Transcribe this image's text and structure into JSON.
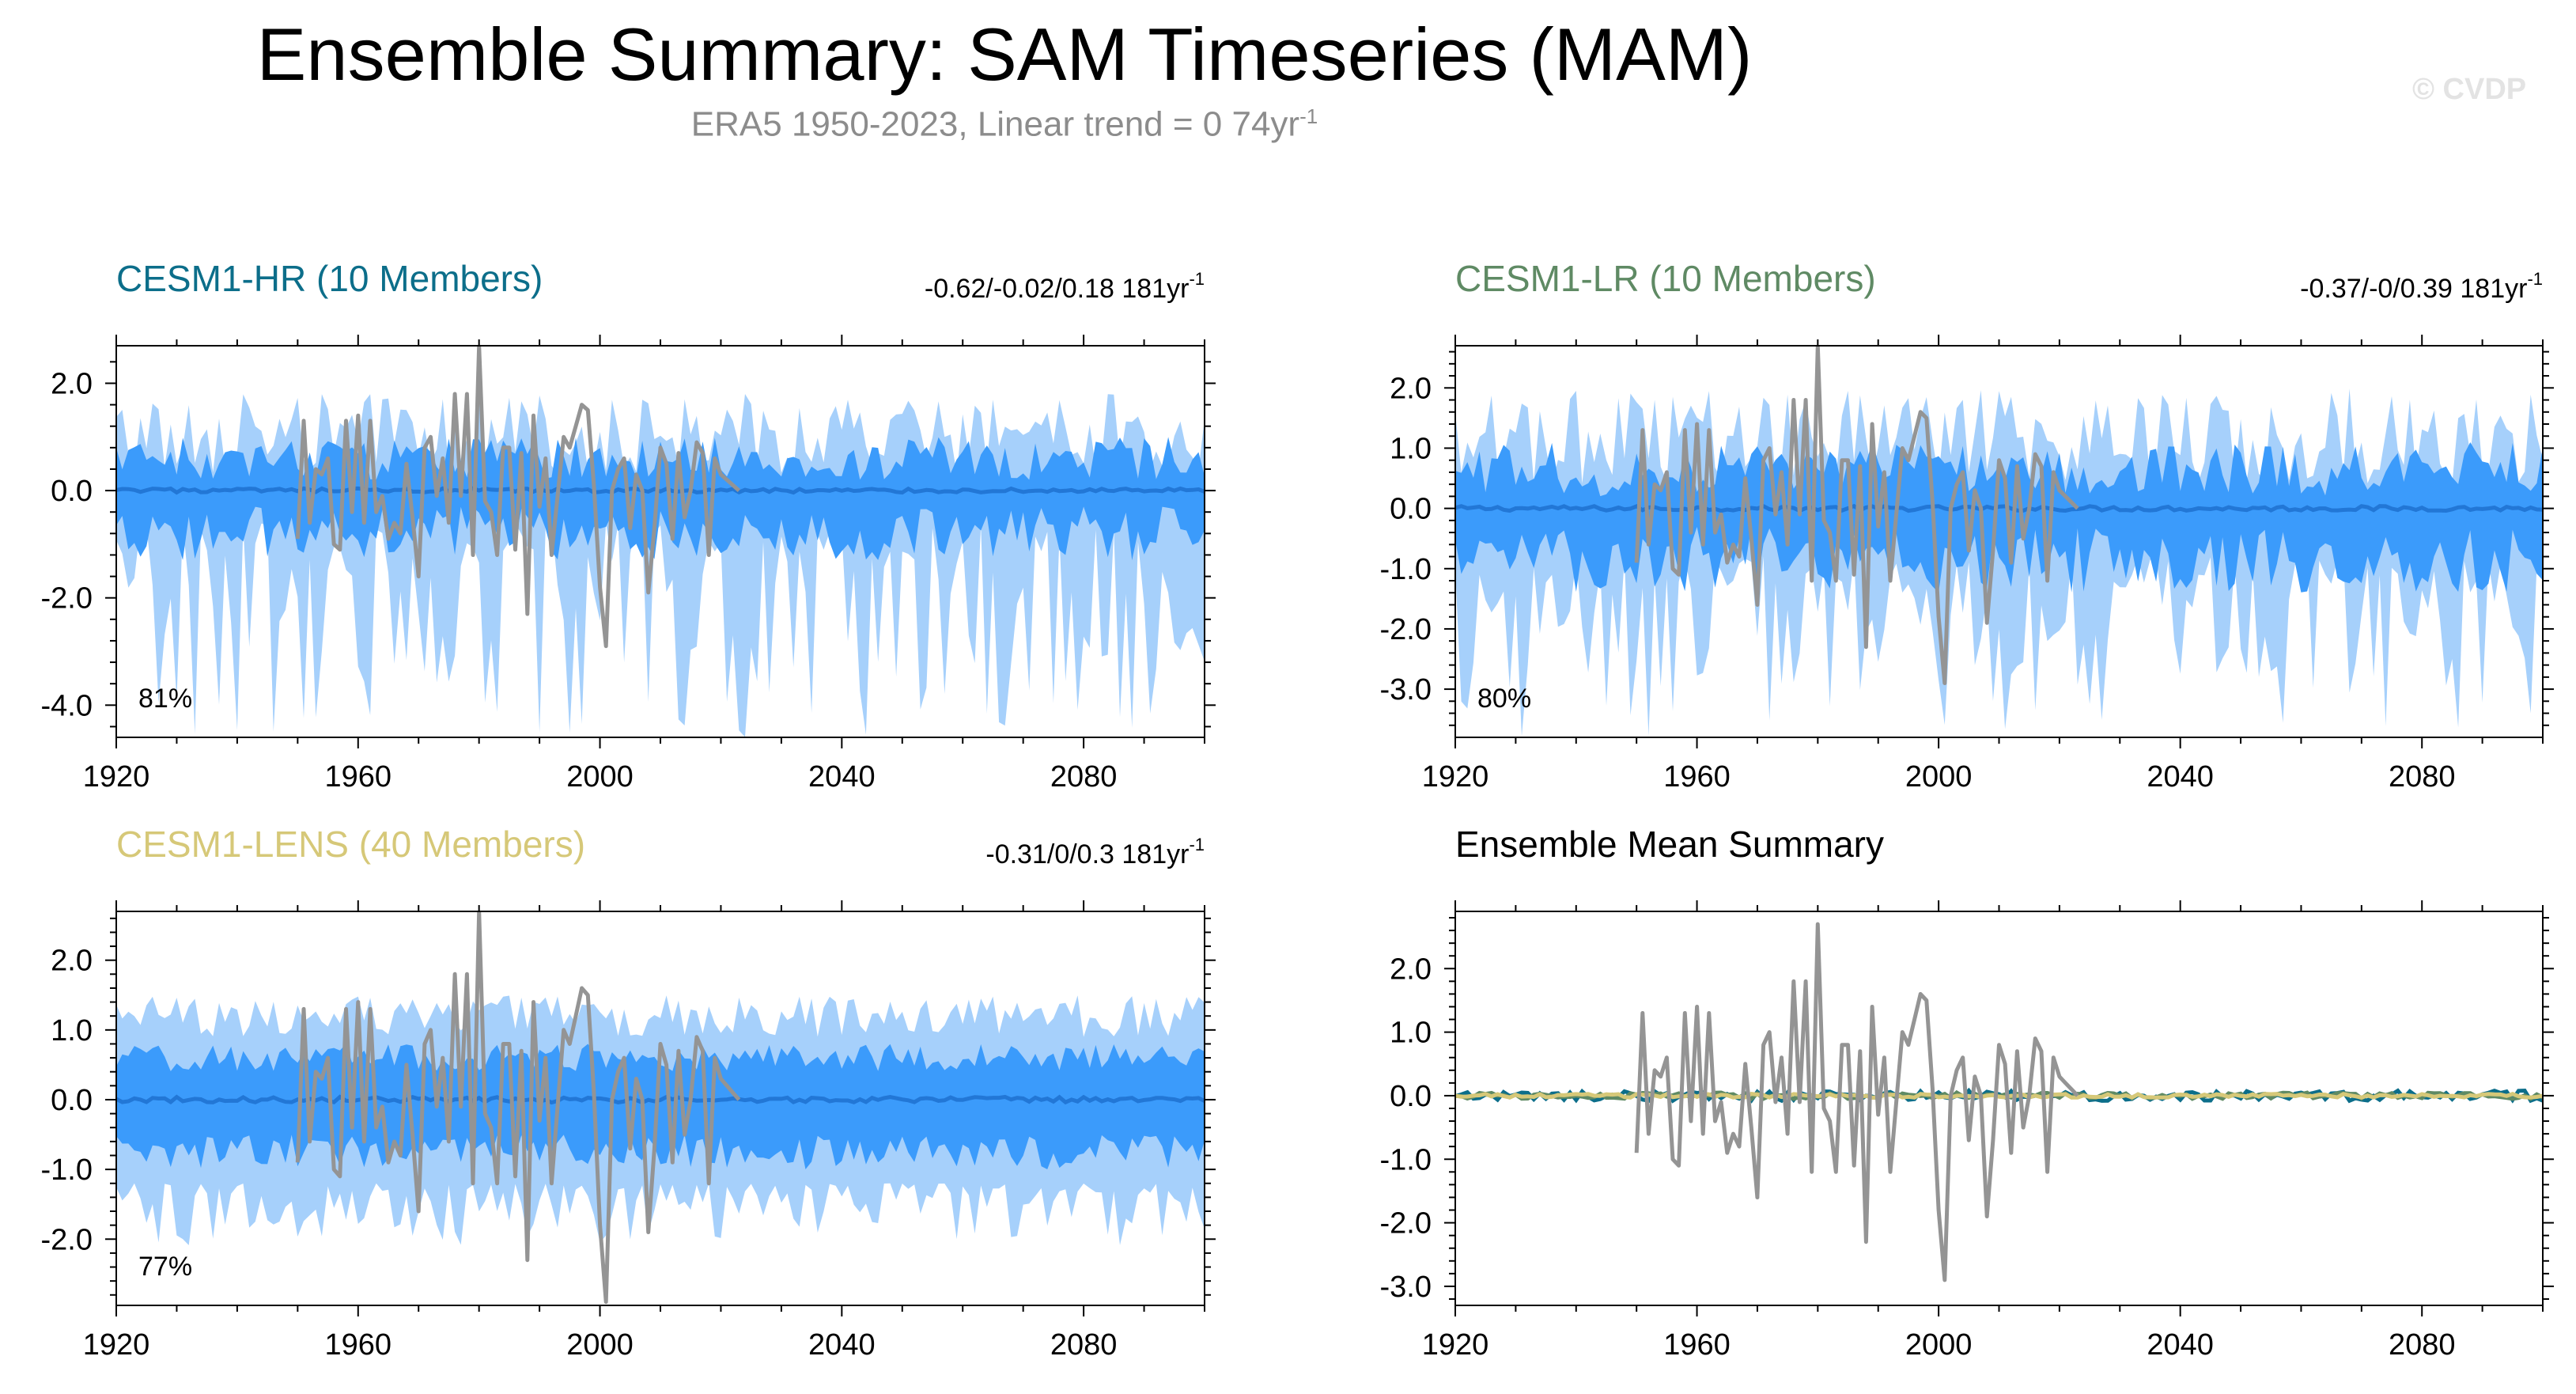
{
  "header": {
    "title": "Ensemble Summary: SAM Timeseries (MAM)",
    "subtitle_main": "ERA5 1950-2023, Linear trend = 0 74yr",
    "subtitle_exp": "-1",
    "copyright": "© CVDP"
  },
  "colors": {
    "outer_band": "#a6d0fb",
    "inner_band": "#3b9bfb",
    "ensemble_mean": "#2277d6",
    "observations": "#949494",
    "hr": "#0c6e8a",
    "lr": "#5f8a64",
    "lens": "#d6c878",
    "summary_title": "#000000"
  },
  "panels": [
    {
      "id": "hr",
      "title": "CESM1-HR (10 Members)",
      "stats_main": "-0.62/-0.02/0.18 181yr",
      "stats_exp": "-1",
      "percent": "81%",
      "x_ticks": [
        "1920",
        "1960",
        "2000",
        "2040",
        "2080"
      ],
      "y_ticks": [
        "2.0",
        "0.0",
        "-2.0",
        "-4.0"
      ]
    },
    {
      "id": "lr",
      "title": "CESM1-LR (10 Members)",
      "stats_main": "-0.37/-0/0.39 181yr",
      "stats_exp": "-1",
      "percent": "80%",
      "x_ticks": [
        "1920",
        "1960",
        "2000",
        "2040",
        "2080"
      ],
      "y_ticks": [
        "2.0",
        "1.0",
        "0.0",
        "-1.0",
        "-2.0",
        "-3.0"
      ]
    },
    {
      "id": "lens",
      "title": "CESM1-LENS (40 Members)",
      "stats_main": "-0.31/0/0.3 181yr",
      "stats_exp": "-1",
      "percent": "77%",
      "x_ticks": [
        "1920",
        "1960",
        "2000",
        "2040",
        "2080"
      ],
      "y_ticks": [
        "2.0",
        "1.0",
        "0.0",
        "-1.0",
        "-2.0"
      ]
    },
    {
      "id": "summary",
      "title": "Ensemble Mean Summary",
      "x_ticks": [
        "1920",
        "1960",
        "2000",
        "2040",
        "2080"
      ],
      "y_ticks": [
        "2.0",
        "1.0",
        "0.0",
        "-1.0",
        "-2.0",
        "-3.0"
      ]
    }
  ],
  "chart_data": [
    {
      "type": "area",
      "panel": "CESM1-HR (10 Members)",
      "xlim": [
        1920,
        2100
      ],
      "ylim": [
        -4.6,
        2.7
      ],
      "band_outer": {
        "min_range": [
          -4.6,
          -0.6
        ],
        "max_range": [
          0.3,
          1.8
        ]
      },
      "band_inner": {
        "min_range": [
          -1.3,
          -0.3
        ],
        "max_range": [
          0.2,
          1.0
        ]
      },
      "ensemble_mean": {
        "x_range": [
          1920,
          2100
        ],
        "y": 0.0
      },
      "observations": {
        "name": "ERA5",
        "x": [
          1950,
          1951,
          1952,
          1953,
          1954,
          1955,
          1956,
          1957,
          1958,
          1959,
          1960,
          1961,
          1962,
          1963,
          1964,
          1965,
          1966,
          1967,
          1968,
          1969,
          1970,
          1971,
          1972,
          1973,
          1974,
          1975,
          1976,
          1977,
          1978,
          1979,
          1980,
          1981,
          1982,
          1983,
          1984,
          1985,
          1986,
          1987,
          1988,
          1989,
          1990,
          1991,
          1992,
          1993,
          1994,
          1995,
          1996,
          1997,
          1998,
          1999,
          2000,
          2001,
          2002,
          2003,
          2004,
          2005,
          2006,
          2007,
          2008,
          2009,
          2010,
          2011,
          2012,
          2013,
          2014,
          2015,
          2016,
          2017,
          2018,
          2019,
          2020,
          2021,
          2022,
          2023
        ],
        "y": [
          -0.9,
          1.3,
          -0.6,
          0.4,
          0.3,
          0.6,
          -1.0,
          -1.1,
          1.3,
          -0.4,
          1.4,
          -0.6,
          1.3,
          -0.4,
          -0.1,
          -0.9,
          -0.6,
          -0.8,
          0.5,
          -0.5,
          -1.6,
          0.8,
          1.0,
          -0.1,
          0.6,
          -0.6,
          1.8,
          -0.1,
          1.8,
          -1.2,
          2.7,
          -0.2,
          -0.4,
          -1.2,
          0.8,
          0.8,
          -1.1,
          0.7,
          -2.3,
          1.4,
          -0.3,
          0.6,
          -1.2,
          -0.1,
          1.0,
          0.8,
          1.2,
          1.6,
          1.5,
          0.1,
          -1.8,
          -2.9,
          0.0,
          0.4,
          0.6,
          -0.7,
          0.3,
          0.0,
          -1.9,
          -0.7,
          0.8,
          0.5,
          -0.9,
          0.7,
          -0.5,
          0.0,
          0.9,
          0.7,
          -1.2,
          0.6,
          0.3,
          0.2,
          0.1,
          0.0
        ]
      }
    },
    {
      "type": "area",
      "panel": "CESM1-LR (10 Members)",
      "xlim": [
        1920,
        2100
      ],
      "ylim": [
        -3.8,
        2.7
      ],
      "band_outer": {
        "min_range": [
          -3.8,
          -0.8
        ],
        "max_range": [
          0.4,
          2.0
        ]
      },
      "band_inner": {
        "min_range": [
          -1.4,
          -0.3
        ],
        "max_range": [
          0.2,
          1.1
        ]
      },
      "ensemble_mean": {
        "x_range": [
          1920,
          2100
        ],
        "y": 0.0
      },
      "observations": {
        "name": "ERA5",
        "x": [
          1950,
          1951,
          1952,
          1953,
          1954,
          1955,
          1956,
          1957,
          1958,
          1959,
          1960,
          1961,
          1962,
          1963,
          1964,
          1965,
          1966,
          1967,
          1968,
          1969,
          1970,
          1971,
          1972,
          1973,
          1974,
          1975,
          1976,
          1977,
          1978,
          1979,
          1980,
          1981,
          1982,
          1983,
          1984,
          1985,
          1986,
          1987,
          1988,
          1989,
          1990,
          1991,
          1992,
          1993,
          1994,
          1995,
          1996,
          1997,
          1998,
          1999,
          2000,
          2001,
          2002,
          2003,
          2004,
          2005,
          2006,
          2007,
          2008,
          2009,
          2010,
          2011,
          2012,
          2013,
          2014,
          2015,
          2016,
          2017,
          2018,
          2019,
          2020,
          2021,
          2022,
          2023
        ],
        "y": [
          -0.9,
          1.3,
          -0.6,
          0.4,
          0.3,
          0.6,
          -1.0,
          -1.1,
          1.3,
          -0.4,
          1.4,
          -0.6,
          1.3,
          -0.4,
          -0.1,
          -0.9,
          -0.6,
          -0.8,
          0.5,
          -0.5,
          -1.6,
          0.8,
          1.0,
          -0.1,
          0.6,
          -0.6,
          1.8,
          -0.1,
          1.8,
          -1.2,
          2.7,
          -0.2,
          -0.4,
          -1.2,
          0.8,
          0.8,
          -1.1,
          0.7,
          -2.3,
          1.4,
          -0.3,
          0.6,
          -1.2,
          -0.1,
          1.0,
          0.8,
          1.2,
          1.6,
          1.5,
          0.1,
          -1.8,
          -2.9,
          0.0,
          0.4,
          0.6,
          -0.7,
          0.3,
          0.0,
          -1.9,
          -0.7,
          0.8,
          0.5,
          -0.9,
          0.7,
          -0.5,
          0.0,
          0.9,
          0.7,
          -1.2,
          0.6,
          0.3,
          0.2,
          0.1,
          0.0
        ]
      }
    },
    {
      "type": "area",
      "panel": "CESM1-LENS (40 Members)",
      "xlim": [
        1920,
        2100
      ],
      "ylim": [
        -2.95,
        2.7
      ],
      "band_outer": {
        "min_range": [
          -2.1,
          -1.2
        ],
        "max_range": [
          0.9,
          1.5
        ]
      },
      "band_inner": {
        "min_range": [
          -1.0,
          -0.5
        ],
        "max_range": [
          0.4,
          0.8
        ]
      },
      "ensemble_mean": {
        "x_range": [
          1920,
          2100
        ],
        "y": 0.0
      },
      "observations": {
        "name": "ERA5",
        "x": [
          1950,
          1951,
          1952,
          1953,
          1954,
          1955,
          1956,
          1957,
          1958,
          1959,
          1960,
          1961,
          1962,
          1963,
          1964,
          1965,
          1966,
          1967,
          1968,
          1969,
          1970,
          1971,
          1972,
          1973,
          1974,
          1975,
          1976,
          1977,
          1978,
          1979,
          1980,
          1981,
          1982,
          1983,
          1984,
          1985,
          1986,
          1987,
          1988,
          1989,
          1990,
          1991,
          1992,
          1993,
          1994,
          1995,
          1996,
          1997,
          1998,
          1999,
          2000,
          2001,
          2002,
          2003,
          2004,
          2005,
          2006,
          2007,
          2008,
          2009,
          2010,
          2011,
          2012,
          2013,
          2014,
          2015,
          2016,
          2017,
          2018,
          2019,
          2020,
          2021,
          2022,
          2023
        ],
        "y": [
          -0.9,
          1.3,
          -0.6,
          0.4,
          0.3,
          0.6,
          -1.0,
          -1.1,
          1.3,
          -0.4,
          1.4,
          -0.6,
          1.3,
          -0.4,
          -0.1,
          -0.9,
          -0.6,
          -0.8,
          0.5,
          -0.5,
          -1.6,
          0.8,
          1.0,
          -0.1,
          0.6,
          -0.6,
          1.8,
          -0.1,
          1.8,
          -1.2,
          2.7,
          -0.2,
          -0.4,
          -1.2,
          0.8,
          0.8,
          -1.1,
          0.7,
          -2.3,
          1.4,
          -0.3,
          0.6,
          -1.2,
          -0.1,
          1.0,
          0.8,
          1.2,
          1.6,
          1.5,
          0.1,
          -1.8,
          -2.9,
          0.0,
          0.4,
          0.6,
          -0.7,
          0.3,
          0.0,
          -1.9,
          -0.7,
          0.8,
          0.5,
          -0.9,
          0.7,
          -0.5,
          0.0,
          0.9,
          0.7,
          -1.2,
          0.6,
          0.3,
          0.2,
          0.1,
          0.0
        ]
      }
    },
    {
      "type": "line",
      "panel": "Ensemble Mean Summary",
      "xlim": [
        1920,
        2100
      ],
      "ylim": [
        -3.3,
        2.9
      ],
      "series": [
        {
          "color": "#0c6e8a",
          "x_range": [
            1920,
            2100
          ],
          "y_amplitude": 0.08
        },
        {
          "color": "#5f8a64",
          "x_range": [
            1920,
            2100
          ],
          "y_amplitude": 0.05
        },
        {
          "color": "#d6c878",
          "x_range": [
            1920,
            2100
          ],
          "y_amplitude": 0.03
        }
      ],
      "observations": {
        "name": "ERA5",
        "x": [
          1950,
          1951,
          1952,
          1953,
          1954,
          1955,
          1956,
          1957,
          1958,
          1959,
          1960,
          1961,
          1962,
          1963,
          1964,
          1965,
          1966,
          1967,
          1968,
          1969,
          1970,
          1971,
          1972,
          1973,
          1974,
          1975,
          1976,
          1977,
          1978,
          1979,
          1980,
          1981,
          1982,
          1983,
          1984,
          1985,
          1986,
          1987,
          1988,
          1989,
          1990,
          1991,
          1992,
          1993,
          1994,
          1995,
          1996,
          1997,
          1998,
          1999,
          2000,
          2001,
          2002,
          2003,
          2004,
          2005,
          2006,
          2007,
          2008,
          2009,
          2010,
          2011,
          2012,
          2013,
          2014,
          2015,
          2016,
          2017,
          2018,
          2019,
          2020,
          2021,
          2022,
          2023
        ],
        "y": [
          -0.9,
          1.3,
          -0.6,
          0.4,
          0.3,
          0.6,
          -1.0,
          -1.1,
          1.3,
          -0.4,
          1.4,
          -0.6,
          1.3,
          -0.4,
          -0.1,
          -0.9,
          -0.6,
          -0.8,
          0.5,
          -0.5,
          -1.6,
          0.8,
          1.0,
          -0.1,
          0.6,
          -0.6,
          1.8,
          -0.1,
          1.8,
          -1.2,
          2.7,
          -0.2,
          -0.4,
          -1.2,
          0.8,
          0.8,
          -1.1,
          0.7,
          -2.3,
          1.4,
          -0.3,
          0.6,
          -1.2,
          -0.1,
          1.0,
          0.8,
          1.2,
          1.6,
          1.5,
          0.1,
          -1.8,
          -2.9,
          0.0,
          0.4,
          0.6,
          -0.7,
          0.3,
          0.0,
          -1.9,
          -0.7,
          0.8,
          0.5,
          -0.9,
          0.7,
          -0.5,
          0.0,
          0.9,
          0.7,
          -1.2,
          0.6,
          0.3,
          0.2,
          0.1,
          0.0
        ]
      }
    }
  ]
}
